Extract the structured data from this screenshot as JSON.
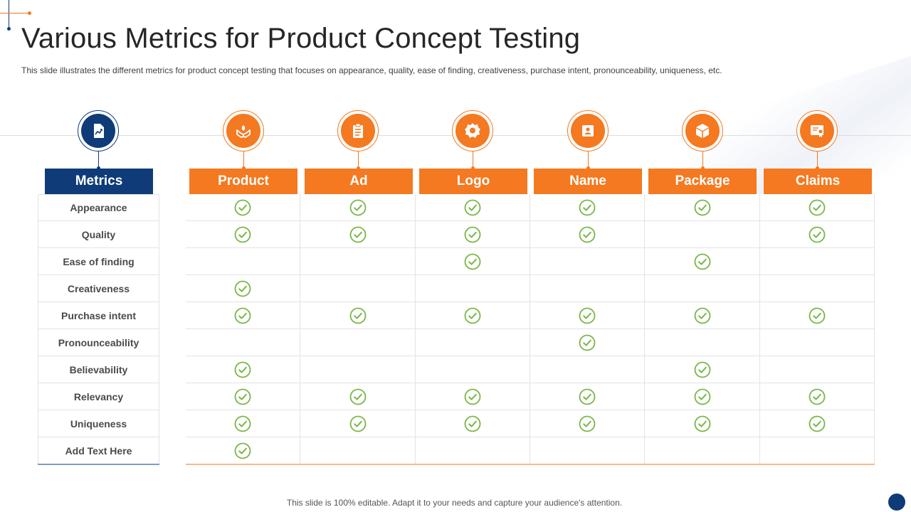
{
  "slide": {
    "title": "Various Metrics for Product Concept Testing",
    "subtitle": "This slide illustrates the different metrics for product concept testing that focuses on appearance, quality, ease of finding, creativeness, purchase intent, pronounceability, uniqueness, etc.",
    "footer": "This slide is 100% editable. Adapt it to your needs and capture your audience's attention."
  },
  "colors": {
    "accent": "#f47920",
    "navy": "#0f3b78",
    "check": "#7ab648"
  },
  "table": {
    "metrics_header": "Metrics",
    "metrics_icon": "chart-document-icon",
    "columns": [
      {
        "label": "Product",
        "icon": "hands-plant-icon"
      },
      {
        "label": "Ad",
        "icon": "clipboard-list-icon"
      },
      {
        "label": "Logo",
        "icon": "badge-gear-icon"
      },
      {
        "label": "Name",
        "icon": "id-badge-icon"
      },
      {
        "label": "Package",
        "icon": "box-icon"
      },
      {
        "label": "Claims",
        "icon": "certificate-icon"
      }
    ],
    "rows": [
      {
        "metric": "Appearance",
        "checks": [
          true,
          true,
          true,
          true,
          true,
          true
        ]
      },
      {
        "metric": "Quality",
        "checks": [
          true,
          true,
          true,
          true,
          false,
          true
        ]
      },
      {
        "metric": "Ease of finding",
        "checks": [
          false,
          false,
          true,
          false,
          true,
          false
        ]
      },
      {
        "metric": "Creativeness",
        "checks": [
          true,
          false,
          false,
          false,
          false,
          false
        ]
      },
      {
        "metric": "Purchase intent",
        "checks": [
          true,
          true,
          true,
          true,
          true,
          true
        ]
      },
      {
        "metric": "Pronounceability",
        "checks": [
          false,
          false,
          false,
          true,
          false,
          false
        ]
      },
      {
        "metric": "Believability",
        "checks": [
          true,
          false,
          false,
          false,
          true,
          false
        ]
      },
      {
        "metric": "Relevancy",
        "checks": [
          true,
          true,
          true,
          true,
          true,
          true
        ]
      },
      {
        "metric": "Uniqueness",
        "checks": [
          true,
          true,
          true,
          true,
          true,
          true
        ]
      },
      {
        "metric": "Add Text Here",
        "checks": [
          true,
          false,
          false,
          false,
          false,
          false
        ]
      }
    ]
  }
}
